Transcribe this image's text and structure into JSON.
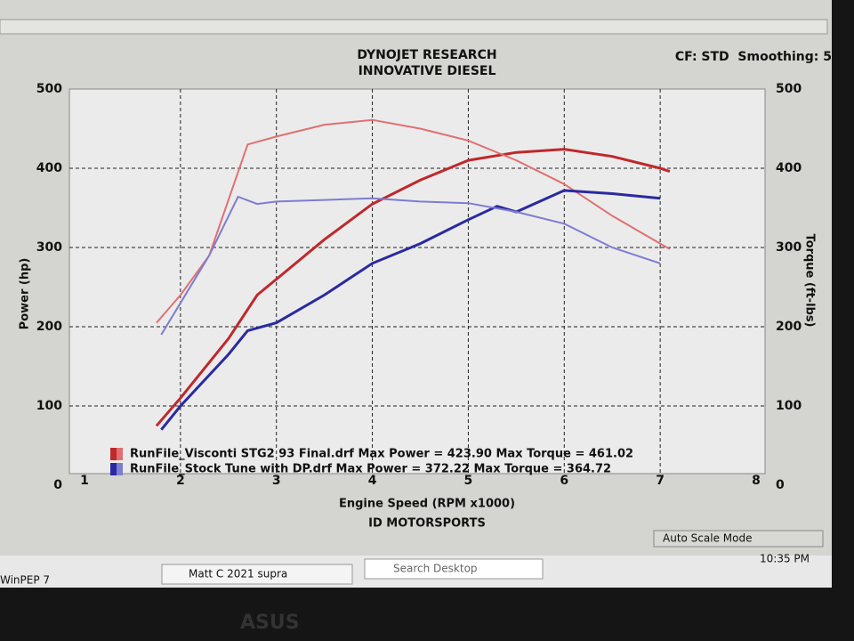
{
  "chart_data": {
    "type": "line",
    "title": "DYNOJET RESEARCH",
    "subtitle": "INNOVATIVE DIESEL",
    "settings_text": "CF: STD  Smoothing: 5",
    "annotation": "ID MOTORSPORTS",
    "x_label": "Engine Speed (RPM x1000)",
    "y_label": "Power (hp)",
    "y2_label": "Torque (ft-lbs)",
    "xlim": [
      1,
      8
    ],
    "xticks": [
      1,
      2,
      3,
      4,
      5,
      6,
      7,
      8
    ],
    "ylim": [
      0,
      500
    ],
    "yticks": [
      0,
      100,
      200,
      300,
      400,
      500
    ],
    "y2lim": [
      0,
      500
    ],
    "y2ticks": [
      0,
      100,
      200,
      300,
      400,
      500
    ],
    "grid": true,
    "legend": [
      {
        "text": "RunFile_Visconti STG2 93 Final.drf Max Power = 423.90 Max Torque = 461.02",
        "color": "#c0282a",
        "color2": "#e07070"
      },
      {
        "text": "RunFile_Stock Tune with DP.drf Max Power = 372.22 Max Torque = 364.72",
        "color": "#2a2aa0",
        "color2": "#7d7dd0"
      }
    ],
    "series": [
      {
        "color": "#c0282a",
        "x": [
          1.75,
          2.0,
          2.5,
          2.8,
          3.0,
          3.5,
          4.0,
          4.5,
          5.0,
          5.5,
          6.0,
          6.5,
          7.0,
          7.1
        ],
        "values": [
          75,
          110,
          185,
          240,
          260,
          310,
          355,
          385,
          410,
          420,
          424,
          415,
          400,
          396
        ]
      },
      {
        "color": "#e07070",
        "axis": "y2",
        "x": [
          1.75,
          2.0,
          2.3,
          2.5,
          2.7,
          3.0,
          3.5,
          4.0,
          4.5,
          5.0,
          5.5,
          6.0,
          6.5,
          7.0,
          7.1
        ],
        "values": [
          205,
          240,
          290,
          360,
          430,
          440,
          455,
          461,
          450,
          435,
          410,
          380,
          340,
          305,
          298
        ]
      },
      {
        "color": "#2a2aa0",
        "x": [
          1.8,
          2.0,
          2.5,
          2.7,
          3.0,
          3.5,
          4.0,
          4.5,
          5.0,
          5.3,
          5.5,
          6.0,
          6.5,
          7.0
        ],
        "values": [
          70,
          100,
          165,
          195,
          205,
          240,
          280,
          305,
          335,
          352,
          345,
          372,
          368,
          362
        ]
      },
      {
        "color": "#7d7dd0",
        "axis": "y2",
        "x": [
          1.8,
          2.0,
          2.3,
          2.6,
          2.8,
          3.0,
          3.5,
          4.0,
          4.5,
          5.0,
          5.5,
          6.0,
          6.5,
          7.0
        ],
        "values": [
          190,
          230,
          290,
          364,
          355,
          358,
          360,
          362,
          358,
          356,
          345,
          330,
          300,
          280
        ]
      }
    ]
  },
  "screen": {
    "status": "Auto Scale Mode",
    "app": "WinPEP 7",
    "task": "Matt C 2021 supra",
    "search": "Search Desktop",
    "clock": "10:35 PM",
    "brand": "ASUS"
  }
}
